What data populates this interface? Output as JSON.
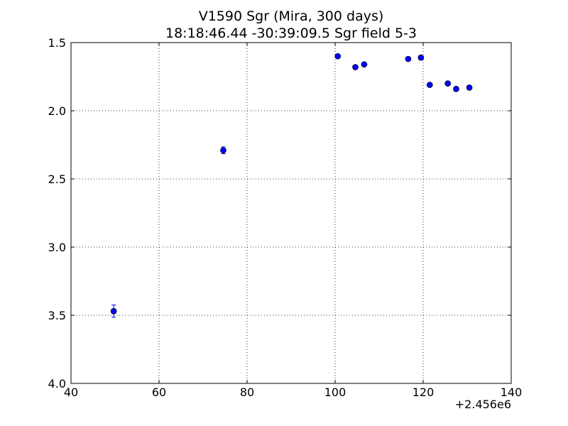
{
  "chart_data": {
    "type": "scatter",
    "title": "V1590 Sgr (Mira, 300 days)",
    "subtitle": "18:18:46.44 -30:39:09.5 Sgr field 5-3",
    "xlabel": "",
    "ylabel": "",
    "x_offset_label": "+2.456e6",
    "xlim": [
      40,
      140
    ],
    "ylim": [
      4.0,
      1.5
    ],
    "y_inverted": true,
    "grid": true,
    "grid_style": "dotted",
    "x_ticks": [
      "40",
      "60",
      "80",
      "100",
      "120",
      "140"
    ],
    "y_ticks": [
      "1.5",
      "2.0",
      "2.5",
      "3.0",
      "3.5",
      "4.0"
    ],
    "marker_color": "#0000ff",
    "points": [
      {
        "x": 49.7,
        "y": 3.47,
        "err": 0.045
      },
      {
        "x": 74.6,
        "y": 2.29,
        "err": 0.025
      },
      {
        "x": 100.6,
        "y": 1.6,
        "err": 0.01
      },
      {
        "x": 104.6,
        "y": 1.68,
        "err": 0.01
      },
      {
        "x": 106.6,
        "y": 1.66,
        "err": 0.01
      },
      {
        "x": 116.6,
        "y": 1.62,
        "err": 0.01
      },
      {
        "x": 119.5,
        "y": 1.61,
        "err": 0.01
      },
      {
        "x": 121.5,
        "y": 1.81,
        "err": 0.01
      },
      {
        "x": 125.6,
        "y": 1.8,
        "err": 0.01
      },
      {
        "x": 127.5,
        "y": 1.84,
        "err": 0.01
      },
      {
        "x": 130.5,
        "y": 1.83,
        "err": 0.01
      }
    ]
  }
}
